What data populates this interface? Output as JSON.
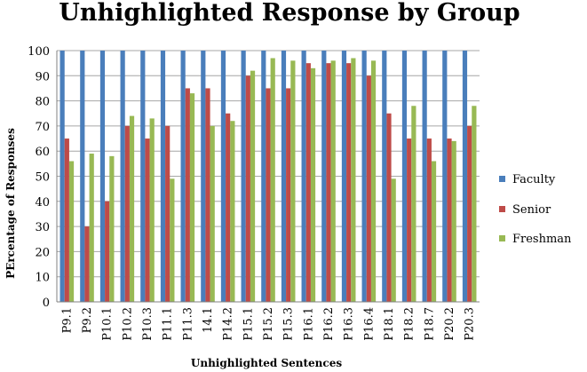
{
  "chart_data": {
    "type": "bar",
    "title": "Unhighlighted Response by Group",
    "xlabel": "Unhighlighted Sentences",
    "ylabel": "PErcentage of Responses",
    "ylim": [
      0,
      100
    ],
    "yticks": [
      0,
      10,
      20,
      30,
      40,
      50,
      60,
      70,
      80,
      90,
      100
    ],
    "grid": true,
    "legend": "right",
    "categories": [
      "P9.1",
      "P9.2",
      "P10.1",
      "P10.2",
      "P10.3",
      "P11.1",
      "P11.3",
      "14.1",
      "P14.2",
      "P15.1",
      "P15.2",
      "P15.3",
      "P16.1",
      "P16.2",
      "P16.3",
      "P16.4",
      "P18.1",
      "P18.2",
      "P18.7",
      "P20.2",
      "P20.3"
    ],
    "series": [
      {
        "name": "Faculty",
        "color": "#4a7ebb",
        "values": [
          100,
          100,
          100,
          100,
          100,
          100,
          100,
          100,
          100,
          100,
          100,
          100,
          100,
          100,
          100,
          100,
          100,
          100,
          100,
          100,
          100
        ]
      },
      {
        "name": "Senior",
        "color": "#be4b48",
        "values": [
          65,
          30,
          40,
          70,
          65,
          70,
          85,
          85,
          75,
          90,
          85,
          85,
          95,
          95,
          95,
          90,
          75,
          65,
          65,
          65,
          70
        ]
      },
      {
        "name": "Freshman",
        "color": "#98b954",
        "values": [
          56,
          59,
          58,
          74,
          73,
          49,
          83,
          70,
          72,
          92,
          97,
          96,
          93,
          96,
          97,
          96,
          49,
          78,
          56,
          64,
          78
        ]
      }
    ]
  }
}
